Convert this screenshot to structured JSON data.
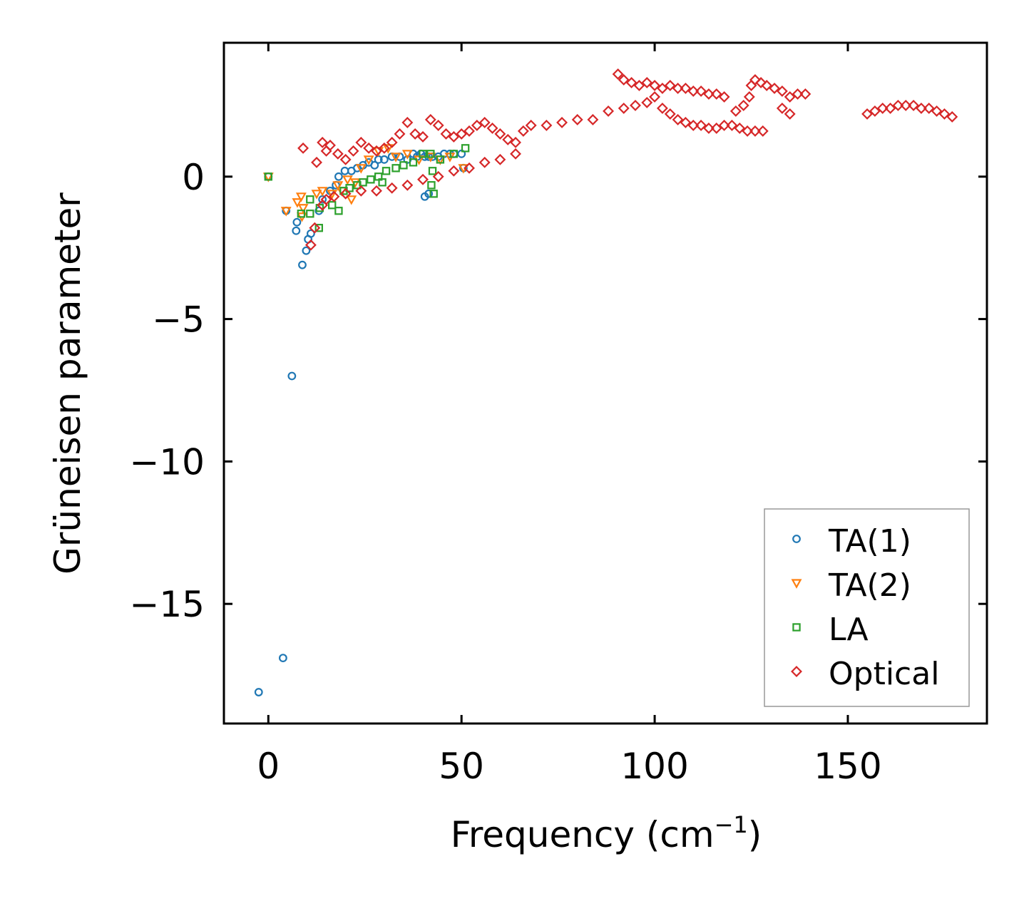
{
  "chart_data": {
    "type": "scatter",
    "title": "",
    "xlabel": "Frequency (cm",
    "xlabel_sup": "−1",
    "xlabel_end": ")",
    "ylabel": "Grüneisen parameter",
    "xlim": [
      -11.5,
      186
    ],
    "ylim": [
      -19.2,
      4.7
    ],
    "x_ticks": [
      0,
      50,
      100,
      150
    ],
    "x_tick_labels": [
      "0",
      "50",
      "100",
      "150"
    ],
    "y_ticks": [
      0,
      -5,
      -10,
      -15
    ],
    "y_tick_labels": [
      "0",
      "−5",
      "−10",
      "−15"
    ],
    "legend_position": "lower-right",
    "series": [
      {
        "name": "TA(1)",
        "marker": "circle",
        "color": "#1f77b4",
        "points": [
          [
            0,
            0
          ],
          [
            -2.5,
            -18.1
          ],
          [
            3.8,
            -16.9
          ],
          [
            6.1,
            -7.0
          ],
          [
            8.8,
            -3.1
          ],
          [
            9.8,
            -2.6
          ],
          [
            10.3,
            -2.2
          ],
          [
            11.0,
            -2.0
          ],
          [
            7.2,
            -1.9
          ],
          [
            7.4,
            -1.6
          ],
          [
            4.6,
            -1.2
          ],
          [
            13.1,
            -1.2
          ],
          [
            14.0,
            -0.8
          ],
          [
            16.0,
            -0.5
          ],
          [
            17.5,
            -0.3
          ],
          [
            18.2,
            0.0
          ],
          [
            19.8,
            0.2
          ],
          [
            21.5,
            0.2
          ],
          [
            23.0,
            0.3
          ],
          [
            24.5,
            0.4
          ],
          [
            26.0,
            0.5
          ],
          [
            27.5,
            0.4
          ],
          [
            28.5,
            0.6
          ],
          [
            30.0,
            0.6
          ],
          [
            32.0,
            0.7
          ],
          [
            34.0,
            0.7
          ],
          [
            36.0,
            0.6
          ],
          [
            37.5,
            0.8
          ],
          [
            38.5,
            0.7
          ],
          [
            39.5,
            0.8
          ],
          [
            40.5,
            0.7
          ],
          [
            41.5,
            0.7
          ],
          [
            42.5,
            0.7
          ],
          [
            44.0,
            0.7
          ],
          [
            45.5,
            0.8
          ],
          [
            47.0,
            0.8
          ],
          [
            48.0,
            0.8
          ],
          [
            50.0,
            0.8
          ],
          [
            50.5,
            0.3
          ],
          [
            40.5,
            -0.7
          ],
          [
            41.5,
            -0.6
          ]
        ]
      },
      {
        "name": "TA(2)",
        "marker": "triangle-down",
        "color": "#ff7f0e",
        "points": [
          [
            0,
            0
          ],
          [
            4.6,
            -1.2
          ],
          [
            7.5,
            -0.9
          ],
          [
            8.5,
            -0.7
          ],
          [
            9.0,
            -1.1
          ],
          [
            8.7,
            -1.4
          ],
          [
            12.5,
            -0.6
          ],
          [
            14.0,
            -0.5
          ],
          [
            16.5,
            -0.6
          ],
          [
            18.0,
            -0.3
          ],
          [
            19.0,
            -0.5
          ],
          [
            20.5,
            -0.1
          ],
          [
            21.5,
            -0.8
          ],
          [
            22.5,
            -0.2
          ],
          [
            24.0,
            0.3
          ],
          [
            26.0,
            0.6
          ],
          [
            28.5,
            0.9
          ],
          [
            31.0,
            1.0
          ],
          [
            33.0,
            0.7
          ],
          [
            36.0,
            0.8
          ],
          [
            39.0,
            0.6
          ],
          [
            42.0,
            0.7
          ],
          [
            44.5,
            0.6
          ],
          [
            47.0,
            0.7
          ],
          [
            50.5,
            0.3
          ]
        ]
      },
      {
        "name": "LA",
        "marker": "square",
        "color": "#2ca02c",
        "points": [
          [
            0,
            0
          ],
          [
            8.5,
            -1.3
          ],
          [
            10.8,
            -1.3
          ],
          [
            10.8,
            -0.8
          ],
          [
            13.1,
            -1.8
          ],
          [
            13.3,
            -1.1
          ],
          [
            16.5,
            -1.0
          ],
          [
            18.2,
            -1.2
          ],
          [
            19.5,
            -0.5
          ],
          [
            21.0,
            -0.4
          ],
          [
            23.0,
            -0.3
          ],
          [
            24.5,
            -0.2
          ],
          [
            26.5,
            -0.1
          ],
          [
            28.5,
            0.0
          ],
          [
            29.5,
            -0.2
          ],
          [
            30.5,
            0.2
          ],
          [
            33.0,
            0.3
          ],
          [
            35.0,
            0.4
          ],
          [
            37.5,
            0.5
          ],
          [
            40.0,
            0.8
          ],
          [
            42.0,
            0.8
          ],
          [
            42.2,
            -0.3
          ],
          [
            42.8,
            -0.6
          ],
          [
            42.5,
            0.2
          ],
          [
            44.5,
            0.6
          ],
          [
            48.0,
            0.8
          ],
          [
            51.0,
            1.0
          ]
        ]
      },
      {
        "name": "Optical",
        "marker": "diamond",
        "color": "#d62728",
        "points": [
          [
            11.0,
            -2.4
          ],
          [
            12.0,
            -1.8
          ],
          [
            14.0,
            -1.0
          ],
          [
            15.0,
            -0.8
          ],
          [
            17.0,
            -0.7
          ],
          [
            20.0,
            -0.6
          ],
          [
            24.0,
            -0.5
          ],
          [
            28.0,
            -0.5
          ],
          [
            32.0,
            -0.4
          ],
          [
            36.0,
            -0.3
          ],
          [
            40.0,
            -0.1
          ],
          [
            44.0,
            0.0
          ],
          [
            48.0,
            0.2
          ],
          [
            52.0,
            0.3
          ],
          [
            56.0,
            0.5
          ],
          [
            60.0,
            0.6
          ],
          [
            64.0,
            0.8
          ],
          [
            9.0,
            1.0
          ],
          [
            12.5,
            0.5
          ],
          [
            14.0,
            1.2
          ],
          [
            15.0,
            0.9
          ],
          [
            16.0,
            1.1
          ],
          [
            18.0,
            0.8
          ],
          [
            20.0,
            0.6
          ],
          [
            22.0,
            0.9
          ],
          [
            24.0,
            1.2
          ],
          [
            26.0,
            1.0
          ],
          [
            28.0,
            0.9
          ],
          [
            30.0,
            1.0
          ],
          [
            32.0,
            1.2
          ],
          [
            34.0,
            1.5
          ],
          [
            36.0,
            1.9
          ],
          [
            38.0,
            1.5
          ],
          [
            40.0,
            1.4
          ],
          [
            42.0,
            2.0
          ],
          [
            44.0,
            1.8
          ],
          [
            46.0,
            1.5
          ],
          [
            48.0,
            1.4
          ],
          [
            50.0,
            1.5
          ],
          [
            52.0,
            1.6
          ],
          [
            54.0,
            1.8
          ],
          [
            56.0,
            1.9
          ],
          [
            58.0,
            1.7
          ],
          [
            60.0,
            1.5
          ],
          [
            62.0,
            1.3
          ],
          [
            64.0,
            1.2
          ],
          [
            66.0,
            1.6
          ],
          [
            68.0,
            1.8
          ],
          [
            72.0,
            1.8
          ],
          [
            76.0,
            1.9
          ],
          [
            80.0,
            2.0
          ],
          [
            84.0,
            2.0
          ],
          [
            88.0,
            2.3
          ],
          [
            92.0,
            2.4
          ],
          [
            95.0,
            2.5
          ],
          [
            98.0,
            2.6
          ],
          [
            100.0,
            2.8
          ],
          [
            90.5,
            3.6
          ],
          [
            92.0,
            3.4
          ],
          [
            94.0,
            3.3
          ],
          [
            96.0,
            3.2
          ],
          [
            98.0,
            3.3
          ],
          [
            100.0,
            3.2
          ],
          [
            102.0,
            3.1
          ],
          [
            104.0,
            3.2
          ],
          [
            106.0,
            3.1
          ],
          [
            108.0,
            3.1
          ],
          [
            110.0,
            3.0
          ],
          [
            112.0,
            3.0
          ],
          [
            114.0,
            2.9
          ],
          [
            116.0,
            2.9
          ],
          [
            118.0,
            2.8
          ],
          [
            102.0,
            2.4
          ],
          [
            104.0,
            2.2
          ],
          [
            106.0,
            2.0
          ],
          [
            108.0,
            1.9
          ],
          [
            110.0,
            1.8
          ],
          [
            112.0,
            1.8
          ],
          [
            114.0,
            1.7
          ],
          [
            116.0,
            1.7
          ],
          [
            118.0,
            1.8
          ],
          [
            120.0,
            1.8
          ],
          [
            122.0,
            1.7
          ],
          [
            124.0,
            1.6
          ],
          [
            126.0,
            1.6
          ],
          [
            128.0,
            1.6
          ],
          [
            121.0,
            2.3
          ],
          [
            123.0,
            2.5
          ],
          [
            124.5,
            2.8
          ],
          [
            125.0,
            3.2
          ],
          [
            126.0,
            3.4
          ],
          [
            127.5,
            3.3
          ],
          [
            129.0,
            3.2
          ],
          [
            131.0,
            3.1
          ],
          [
            133.0,
            3.0
          ],
          [
            135.0,
            2.8
          ],
          [
            137.0,
            2.9
          ],
          [
            139.0,
            2.9
          ],
          [
            133.0,
            2.4
          ],
          [
            135.0,
            2.2
          ],
          [
            155.0,
            2.2
          ],
          [
            157.0,
            2.3
          ],
          [
            159.0,
            2.4
          ],
          [
            161.0,
            2.4
          ],
          [
            163.0,
            2.5
          ],
          [
            165.0,
            2.5
          ],
          [
            167.0,
            2.5
          ],
          [
            169.0,
            2.4
          ],
          [
            171.0,
            2.4
          ],
          [
            173.0,
            2.3
          ],
          [
            175.0,
            2.2
          ],
          [
            177.0,
            2.1
          ]
        ]
      }
    ]
  }
}
